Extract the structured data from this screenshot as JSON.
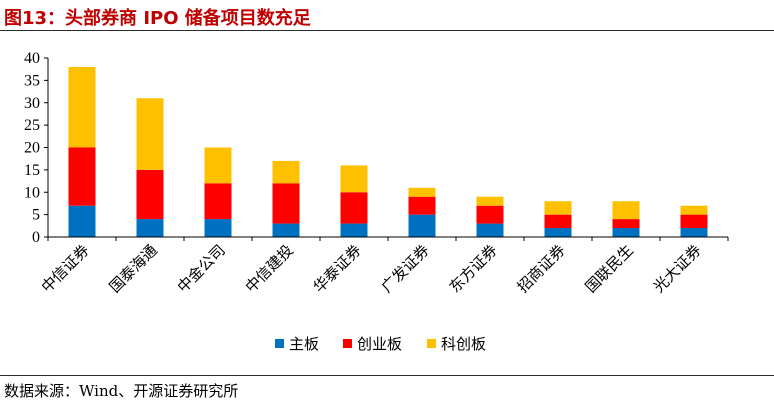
{
  "figure": {
    "title": "图13：头部券商 IPO 储备项目数充足",
    "source": "数据来源：Wind、开源证券研究所"
  },
  "chart_data": {
    "type": "bar",
    "stacked": true,
    "categories": [
      "中信证券",
      "国泰海通",
      "中金公司",
      "中信建投",
      "华泰证券",
      "广发证券",
      "东方证券",
      "招商证券",
      "国联民生",
      "光大证券"
    ],
    "series": [
      {
        "name": "主板",
        "color": "#0070c0",
        "values": [
          7,
          4,
          4,
          3,
          3,
          5,
          3,
          2,
          2,
          2
        ]
      },
      {
        "name": "创业板",
        "color": "#ff0000",
        "values": [
          13,
          11,
          8,
          9,
          7,
          4,
          4,
          3,
          2,
          3
        ]
      },
      {
        "name": "科创板",
        "color": "#ffc000",
        "values": [
          18,
          16,
          8,
          5,
          6,
          2,
          2,
          3,
          4,
          2
        ]
      }
    ],
    "ylim": [
      0,
      40
    ],
    "yticks": [
      0,
      5,
      10,
      15,
      20,
      25,
      30,
      35,
      40
    ],
    "xlabel": "",
    "ylabel": "",
    "grid": false,
    "legend": "bottom-center"
  }
}
